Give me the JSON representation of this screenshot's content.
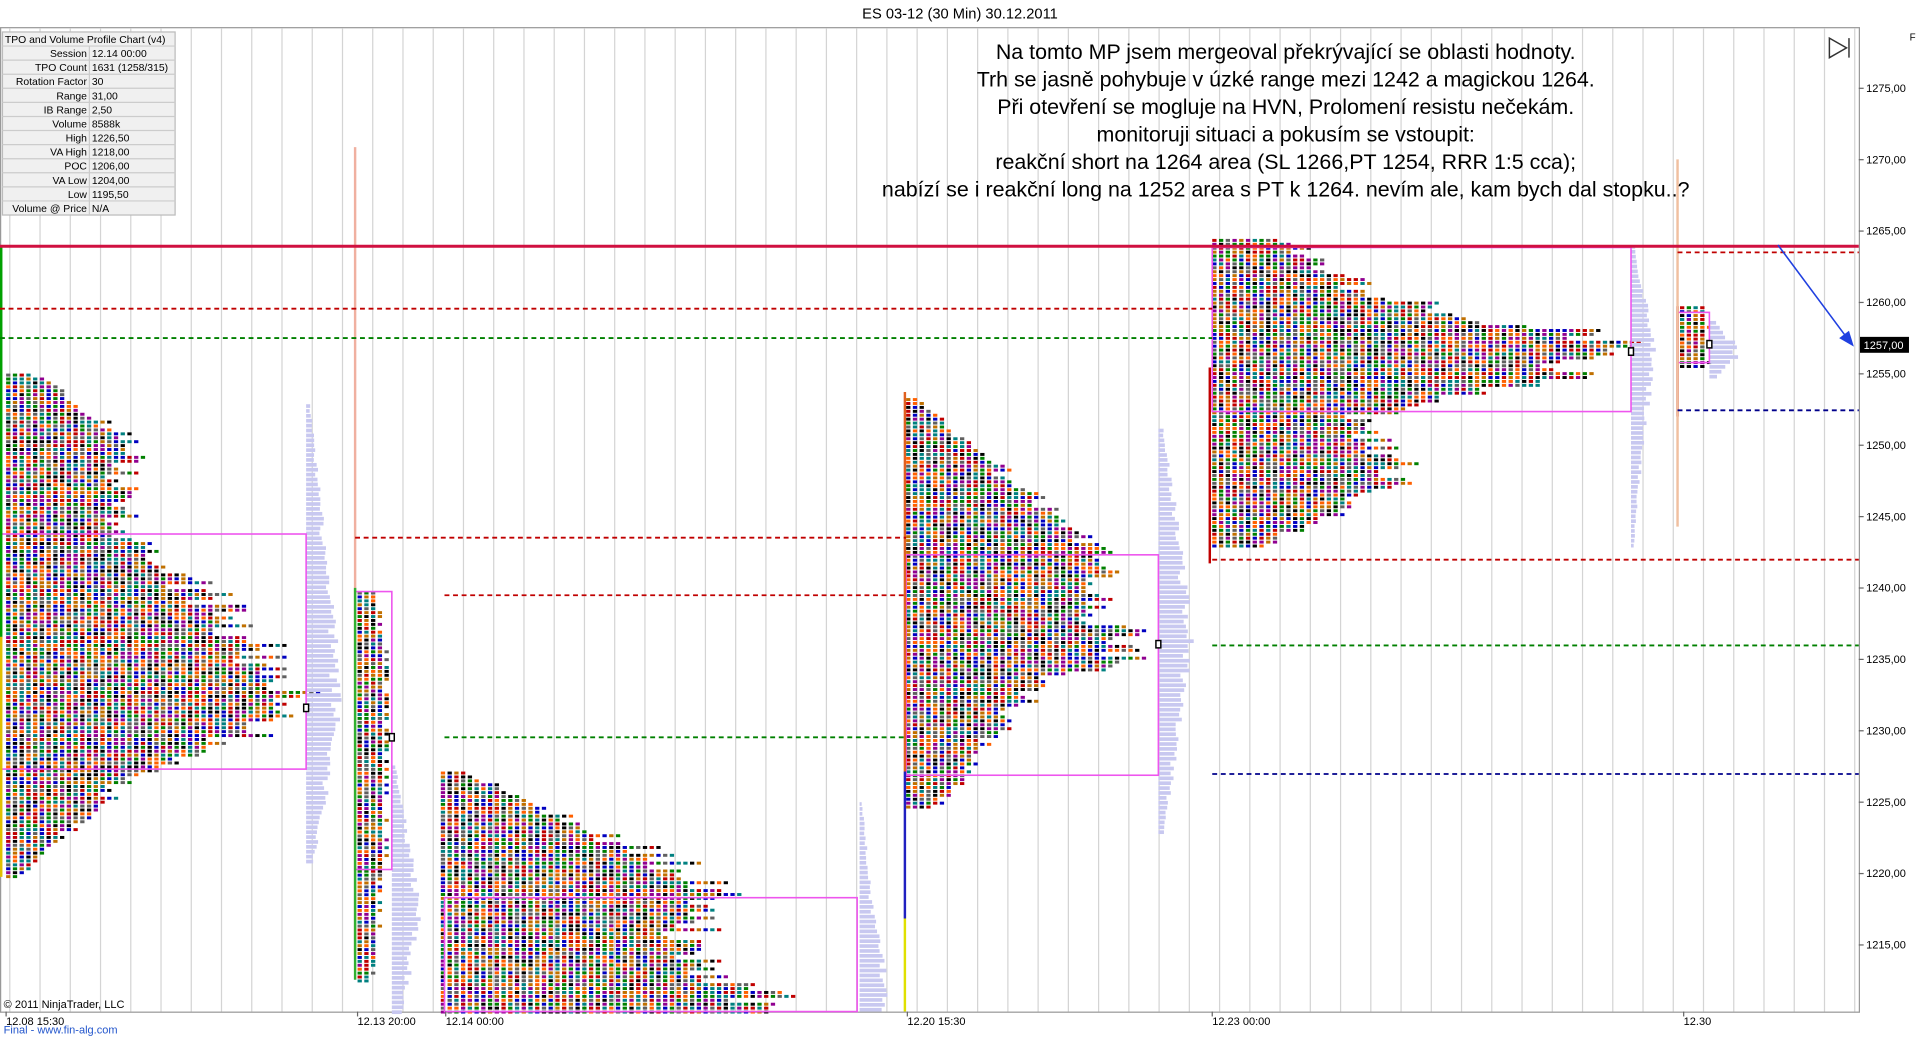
{
  "header": {
    "title": "ES 03-12 (30 Min)  30.12.2011",
    "corner": "F"
  },
  "info_table": {
    "title": "TPO and Volume Profile Chart (v4)",
    "rows": [
      [
        "Session",
        "12.14 00:00"
      ],
      [
        "TPO Count",
        "1631 (1258/315)"
      ],
      [
        "Rotation Factor",
        "30"
      ],
      [
        "Range",
        "31,00"
      ],
      [
        "IB Range",
        "2,50"
      ],
      [
        "Volume",
        "8588k"
      ],
      [
        "High",
        "1226,50"
      ],
      [
        "VA High",
        "1218,00"
      ],
      [
        "POC",
        "1206,00"
      ],
      [
        "VA Low",
        "1204,00"
      ],
      [
        "Low",
        "1195,50"
      ],
      [
        "Volume @ Price",
        "N/A"
      ]
    ]
  },
  "annotation": {
    "lines": [
      "Na tomto MP jsem mergeoval překrývající se oblasti hodnoty.",
      "Trh se jasně pohybuje v úzké range mezi 1242 a magickou 1264.",
      "Při otevření se mogluje na HVN, Prolomení resistu nečekám.",
      "monitoruji situaci a pokusím se vstoupit:",
      "reakční short na 1264 area (SL 1266,PT 1254, RRR 1:5 cca);",
      "nabízí se i reakční long na 1252 area s PT k 1264. nevím ale, kam bych dal stopku..?"
    ]
  },
  "y_axis": {
    "labels": [
      "1275,00",
      "1270,00",
      "1265,00",
      "1260,00",
      "1255,00",
      "1250,00",
      "1245,00",
      "1240,00",
      "1235,00",
      "1230,00",
      "1225,00",
      "1220,00",
      "1215,00"
    ],
    "current_price": "1257,00"
  },
  "x_axis": {
    "labels": [
      "12.08 15:30",
      "12.13 20:00",
      "12.14 00:00",
      "12.20 15:30",
      "12.23 00:00",
      "12.30"
    ]
  },
  "footer": {
    "copyright": "© 2011 NinjaTrader, LLC",
    "link": "Final - www.fin-alg.com"
  }
}
